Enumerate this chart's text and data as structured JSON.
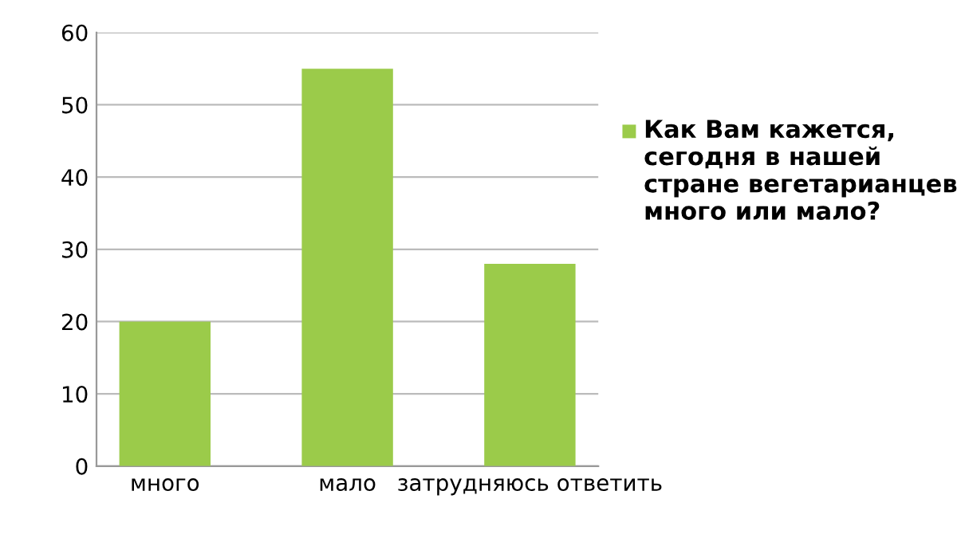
{
  "chart_data": {
    "type": "bar",
    "categories": [
      "много",
      "мало",
      "затрудняюсь ответить"
    ],
    "series": [
      {
        "name": "Как Вам кажется, сегодня в нашей стране вегетарианцев много или мало?",
        "color": "#9bcb4a",
        "values": [
          20,
          55,
          28
        ]
      }
    ],
    "ylim": [
      0,
      60
    ],
    "yticks": [
      0,
      10,
      20,
      30,
      40,
      50,
      60
    ],
    "grid": "y",
    "legend": "right"
  }
}
